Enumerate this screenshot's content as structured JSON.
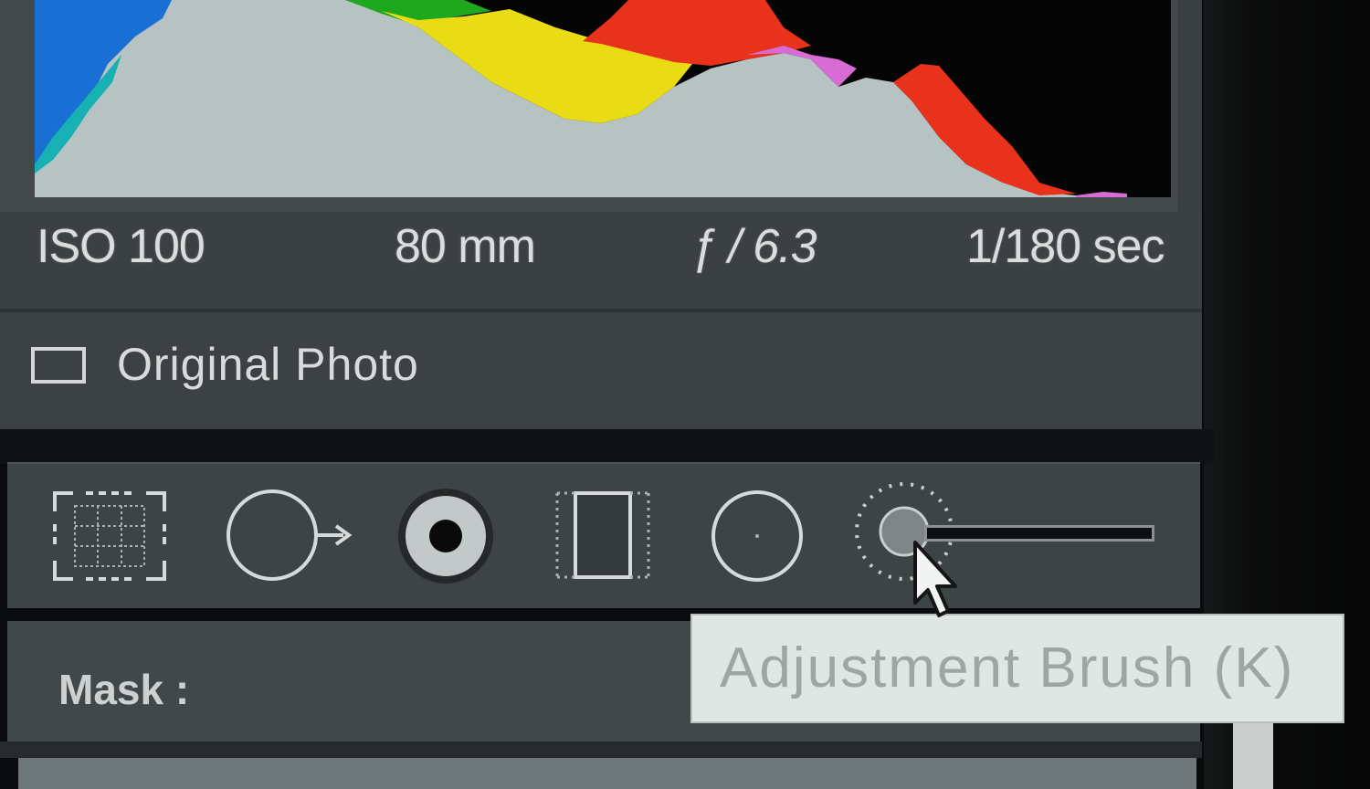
{
  "histogram": {
    "colors": {
      "background": "#050505",
      "luminance": "#b7c2c3",
      "blue": "#1a6fd4",
      "cyan": "#17b0b3",
      "green": "#1ea81e",
      "yellow": "#e9dc14",
      "red": "#e9321c",
      "magenta": "#d86bd4"
    }
  },
  "exif": {
    "iso": "ISO 100",
    "focal_length": "80 mm",
    "aperture": "ƒ / 6.3",
    "shutter": "1/180 sec"
  },
  "original_photo": {
    "label": "Original Photo",
    "checked": false
  },
  "tools": [
    {
      "name": "crop-overlay",
      "icon": "crop-icon"
    },
    {
      "name": "spot-removal",
      "icon": "spot-removal-icon"
    },
    {
      "name": "red-eye-correction",
      "icon": "red-eye-icon"
    },
    {
      "name": "graduated-filter",
      "icon": "graduated-filter-icon"
    },
    {
      "name": "radial-filter",
      "icon": "radial-filter-icon"
    },
    {
      "name": "adjustment-brush",
      "icon": "adjustment-brush-icon"
    }
  ],
  "mask": {
    "label": "Mask :"
  },
  "tooltip": {
    "text": "Adjustment Brush (K)"
  }
}
